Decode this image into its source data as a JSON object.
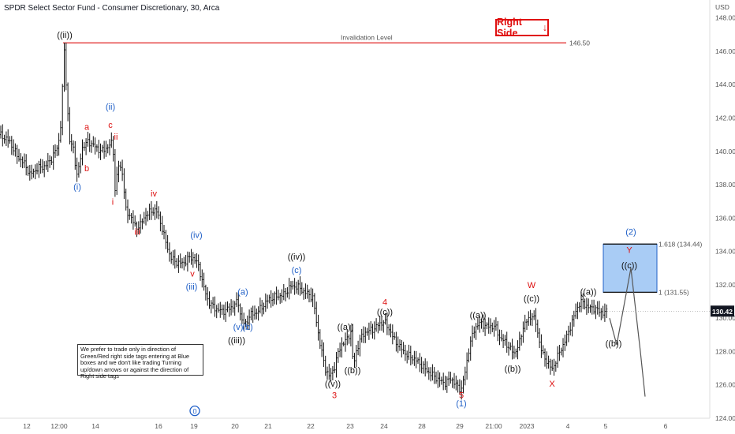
{
  "header": {
    "title": "SPDR Select Sector Fund - Consumer Discretionary, 30, Arca"
  },
  "chart_data": {
    "type": "ohlc",
    "currency": "USD",
    "ylim": [
      124,
      148.6
    ],
    "xlim": [
      0,
      932
    ],
    "y_ticks": [
      "148.00",
      "146.00",
      "144.00",
      "142.00",
      "140.00",
      "138.00",
      "136.00",
      "134.00",
      "132.00",
      "130.00",
      "128.00",
      "126.00",
      "124.00"
    ],
    "x_ticks": [
      {
        "label": "12",
        "x": 34
      },
      {
        "label": "12:00",
        "x": 75
      },
      {
        "label": "14",
        "x": 121
      },
      {
        "label": "16",
        "x": 201
      },
      {
        "label": "19",
        "x": 246
      },
      {
        "label": "20",
        "x": 298
      },
      {
        "label": "21",
        "x": 340
      },
      {
        "label": "22",
        "x": 394
      },
      {
        "label": "23",
        "x": 444
      },
      {
        "label": "24",
        "x": 487
      },
      {
        "label": "28",
        "x": 535
      },
      {
        "label": "29",
        "x": 583
      },
      {
        "label": "21:00",
        "x": 626
      },
      {
        "label": "2023",
        "x": 668
      },
      {
        "label": "4",
        "x": 720
      },
      {
        "label": "5",
        "x": 768
      },
      {
        "label": "6",
        "x": 844
      }
    ],
    "last_price": "130.42",
    "invalidation": {
      "label": "Invalidation Level",
      "value": "146.50"
    },
    "blue_box": {
      "top_label": "1.618 (134.44)",
      "bottom_label": "1 (131.55)",
      "top": 134.44,
      "bottom": 131.55
    },
    "right_side_label": "Right Side",
    "note": "We prefer to trade only in direction of Green/Red right side tags entering at Blue boxes and we don't like trading Turning up/down arrows or against the direction of Right side tags",
    "path": [
      [
        0,
        141.0
      ],
      [
        12,
        140.6
      ],
      [
        22,
        139.7
      ],
      [
        32,
        139.2
      ],
      [
        38,
        138.6
      ],
      [
        48,
        139.0
      ],
      [
        57,
        139.1
      ],
      [
        66,
        139.6
      ],
      [
        74,
        140.4
      ],
      [
        78,
        142.0
      ],
      [
        81,
        146.4
      ],
      [
        84,
        144.0
      ],
      [
        88,
        140.6
      ],
      [
        93,
        140.2
      ],
      [
        98,
        138.4
      ],
      [
        104,
        140.2
      ],
      [
        112,
        140.6
      ],
      [
        120,
        140.3
      ],
      [
        128,
        140.0
      ],
      [
        138,
        140.3
      ],
      [
        143,
        140.6
      ],
      [
        146,
        137.6
      ],
      [
        150,
        139.2
      ],
      [
        155,
        138.8
      ],
      [
        160,
        136.3
      ],
      [
        165,
        136.2
      ],
      [
        172,
        135.4
      ],
      [
        178,
        135.6
      ],
      [
        185,
        136.2
      ],
      [
        192,
        136.4
      ],
      [
        198,
        136.5
      ],
      [
        205,
        135.5
      ],
      [
        211,
        134.4
      ],
      [
        216,
        133.7
      ],
      [
        221,
        133.4
      ],
      [
        228,
        133.3
      ],
      [
        233,
        133.3
      ],
      [
        239,
        133.6
      ],
      [
        246,
        133.6
      ],
      [
        252,
        133.1
      ],
      [
        258,
        131.9
      ],
      [
        264,
        131.0
      ],
      [
        272,
        130.6
      ],
      [
        282,
        130.4
      ],
      [
        292,
        130.6
      ],
      [
        302,
        131.0
      ],
      [
        306,
        129.9
      ],
      [
        311,
        129.6
      ],
      [
        317,
        130.2
      ],
      [
        324,
        130.3
      ],
      [
        331,
        130.6
      ],
      [
        340,
        131.1
      ],
      [
        350,
        131.3
      ],
      [
        360,
        131.4
      ],
      [
        368,
        131.9
      ],
      [
        377,
        131.9
      ],
      [
        385,
        131.6
      ],
      [
        392,
        131.4
      ],
      [
        397,
        131.2
      ],
      [
        402,
        129.5
      ],
      [
        407,
        128.2
      ],
      [
        412,
        127.0
      ],
      [
        418,
        126.5
      ],
      [
        423,
        126.9
      ],
      [
        428,
        127.8
      ],
      [
        434,
        128.5
      ],
      [
        440,
        128.7
      ],
      [
        445,
        129.2
      ],
      [
        448,
        127.1
      ],
      [
        452,
        128.0
      ],
      [
        456,
        128.7
      ],
      [
        464,
        129.2
      ],
      [
        472,
        129.3
      ],
      [
        480,
        129.6
      ],
      [
        487,
        129.8
      ],
      [
        494,
        129.3
      ],
      [
        500,
        128.7
      ],
      [
        508,
        128.2
      ],
      [
        516,
        127.8
      ],
      [
        524,
        127.6
      ],
      [
        532,
        127.3
      ],
      [
        540,
        126.9
      ],
      [
        548,
        126.6
      ],
      [
        556,
        126.3
      ],
      [
        564,
        126.1
      ],
      [
        572,
        126.4
      ],
      [
        578,
        126.0
      ],
      [
        585,
        125.7
      ],
      [
        590,
        126.8
      ],
      [
        594,
        128.0
      ],
      [
        598,
        128.8
      ],
      [
        602,
        129.4
      ],
      [
        608,
        129.7
      ],
      [
        618,
        129.5
      ],
      [
        628,
        129.5
      ],
      [
        634,
        128.8
      ],
      [
        640,
        128.6
      ],
      [
        646,
        128.2
      ],
      [
        652,
        127.9
      ],
      [
        658,
        128.4
      ],
      [
        664,
        129.6
      ],
      [
        670,
        129.9
      ],
      [
        675,
        130.2
      ],
      [
        680,
        129.6
      ],
      [
        684,
        128.6
      ],
      [
        688,
        127.8
      ],
      [
        694,
        127.4
      ],
      [
        700,
        126.9
      ],
      [
        706,
        127.6
      ],
      [
        712,
        128.2
      ],
      [
        718,
        128.8
      ],
      [
        724,
        129.6
      ],
      [
        730,
        130.4
      ],
      [
        736,
        131.0
      ],
      [
        742,
        130.8
      ],
      [
        748,
        130.6
      ],
      [
        754,
        130.6
      ],
      [
        760,
        130.4
      ],
      [
        766,
        130.3
      ],
      [
        770,
        130.42
      ]
    ],
    "projection": [
      [
        773,
        130.0
      ],
      [
        782,
        128.4
      ],
      [
        800,
        133.0
      ],
      [
        812,
        128.0
      ],
      [
        818,
        125.3
      ]
    ],
    "labels": [
      {
        "text": "((ii))",
        "x": 82,
        "y": 146.8,
        "color": "#111"
      },
      {
        "text": "(i)",
        "x": 98,
        "y": 137.7,
        "color": "#1f5fc7"
      },
      {
        "text": "a",
        "x": 110,
        "y": 141.3,
        "color": "#d11"
      },
      {
        "text": "b",
        "x": 110,
        "y": 138.8,
        "color": "#d11"
      },
      {
        "text": "(ii)",
        "x": 140,
        "y": 142.5,
        "color": "#1f5fc7"
      },
      {
        "text": "c",
        "x": 140,
        "y": 141.4,
        "color": "#d11"
      },
      {
        "text": "ii",
        "x": 147,
        "y": 140.7,
        "color": "#d11"
      },
      {
        "text": "i",
        "x": 143,
        "y": 136.8,
        "color": "#d11"
      },
      {
        "text": "iv",
        "x": 195,
        "y": 137.3,
        "color": "#d11"
      },
      {
        "text": "iii",
        "x": 174,
        "y": 135.0,
        "color": "#d11"
      },
      {
        "text": "(iv)",
        "x": 249,
        "y": 134.8,
        "color": "#1f5fc7"
      },
      {
        "text": "v",
        "x": 244,
        "y": 132.5,
        "color": "#d11"
      },
      {
        "text": "(iii)",
        "x": 243,
        "y": 131.7,
        "color": "#1f5fc7"
      },
      {
        "text": "(a)",
        "x": 308,
        "y": 131.4,
        "color": "#1f5fc7"
      },
      {
        "text": "(v)",
        "x": 302,
        "y": 129.3,
        "color": "#1f5fc7"
      },
      {
        "text": "(b)",
        "x": 314,
        "y": 129.3,
        "color": "#1f5fc7"
      },
      {
        "text": "((iii))",
        "x": 300,
        "y": 128.5,
        "color": "#111"
      },
      {
        "text": "((iv))",
        "x": 376,
        "y": 133.5,
        "color": "#111"
      },
      {
        "text": "(c)",
        "x": 376,
        "y": 132.7,
        "color": "#1f5fc7"
      },
      {
        "text": "4",
        "x": 488,
        "y": 130.8,
        "color": "#d11"
      },
      {
        "text": "((c))",
        "x": 488,
        "y": 130.2,
        "color": "#111"
      },
      {
        "text": "((a))",
        "x": 438,
        "y": 129.3,
        "color": "#111"
      },
      {
        "text": "((b))",
        "x": 447,
        "y": 126.7,
        "color": "#111"
      },
      {
        "text": "((v))",
        "x": 422,
        "y": 125.9,
        "color": "#111"
      },
      {
        "text": "3",
        "x": 424,
        "y": 125.2,
        "color": "#d11"
      },
      {
        "text": "((a))",
        "x": 606,
        "y": 130.0,
        "color": "#111"
      },
      {
        "text": "((b))",
        "x": 650,
        "y": 126.8,
        "color": "#111"
      },
      {
        "text": "W",
        "x": 674,
        "y": 131.8,
        "color": "#d11"
      },
      {
        "text": "((c))",
        "x": 674,
        "y": 131.0,
        "color": "#111"
      },
      {
        "text": "X",
        "x": 700,
        "y": 125.9,
        "color": "#d11"
      },
      {
        "text": "((a))",
        "x": 746,
        "y": 131.4,
        "color": "#111"
      },
      {
        "text": "((b))",
        "x": 778,
        "y": 128.3,
        "color": "#111"
      },
      {
        "text": "(2)",
        "x": 800,
        "y": 135.0,
        "color": "#1f5fc7"
      },
      {
        "text": "Y",
        "x": 798,
        "y": 133.9,
        "color": "#d11"
      },
      {
        "text": "((c))",
        "x": 798,
        "y": 133.0,
        "color": "#111"
      },
      {
        "text": "5",
        "x": 585,
        "y": 125.2,
        "color": "#d11"
      },
      {
        "text": "(1)",
        "x": 585,
        "y": 124.7,
        "color": "#1f5fc7"
      }
    ],
    "circle_label": {
      "text": "0",
      "x": 247,
      "y": 124.3
    }
  }
}
